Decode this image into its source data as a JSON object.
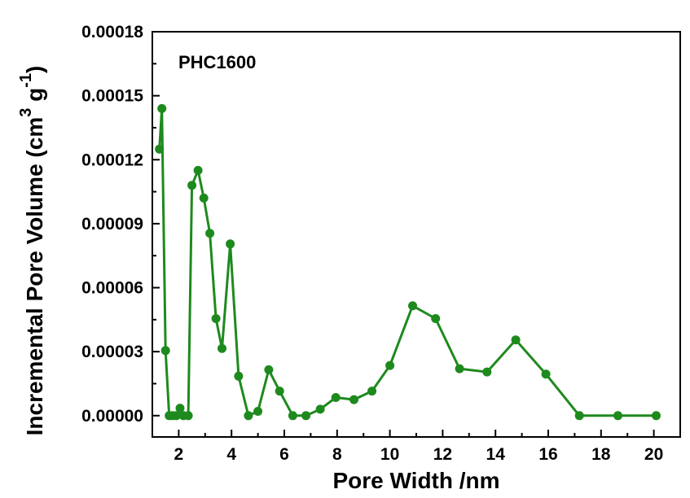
{
  "chart_data": {
    "type": "line",
    "title": "",
    "annotation": "PHC1600",
    "xlabel": "Pore Width /nm",
    "ylabel": {
      "main": "Incremental Pore Volume (cm",
      "sup1": "3",
      "mid": " g",
      "sup2": "-1",
      "end": ")"
    },
    "xlim": [
      1.0,
      21.0
    ],
    "ylim": [
      -1e-05,
      0.00018
    ],
    "xticks": [
      2,
      4,
      6,
      8,
      10,
      12,
      14,
      16,
      18,
      20
    ],
    "xtick_labels": [
      "2",
      "4",
      "6",
      "8",
      "10",
      "12",
      "14",
      "16",
      "18",
      "20"
    ],
    "yticks": [
      0,
      3e-05,
      6e-05,
      9e-05,
      0.00012,
      0.00015,
      0.00018
    ],
    "ytick_labels": [
      "0.00000",
      "0.00003",
      "0.00006",
      "0.00009",
      "0.00012",
      "0.00015",
      "0.00018"
    ],
    "grid": false,
    "legend": "none",
    "series": [
      {
        "color": "#1e8a1e",
        "marker": "circle",
        "x": [
          1.27,
          1.36,
          1.5,
          1.64,
          1.77,
          1.91,
          2.05,
          2.18,
          2.36,
          2.5,
          2.73,
          2.95,
          3.18,
          3.41,
          3.64,
          3.95,
          4.27,
          4.64,
          5.0,
          5.41,
          5.82,
          6.32,
          6.82,
          7.36,
          7.95,
          8.64,
          9.32,
          10.0,
          10.86,
          11.73,
          12.64,
          13.68,
          14.77,
          15.91,
          17.18,
          18.64,
          20.09
        ],
        "y": [
          0.000125,
          0.000144,
          3.05e-05,
          0.0,
          0.0,
          0.0,
          3.5e-06,
          0.0,
          0.0,
          0.000108,
          0.000115,
          0.000102,
          8.55e-05,
          4.55e-05,
          3.15e-05,
          8.05e-05,
          1.85e-05,
          0.0,
          2e-06,
          2.15e-05,
          1.15e-05,
          0.0,
          0.0,
          3e-06,
          8.5e-06,
          7.5e-06,
          1.15e-05,
          2.35e-05,
          5.15e-05,
          4.55e-05,
          2.2e-05,
          2.05e-05,
          3.55e-05,
          1.95e-05,
          0.0,
          0.0,
          0.0
        ]
      }
    ]
  }
}
